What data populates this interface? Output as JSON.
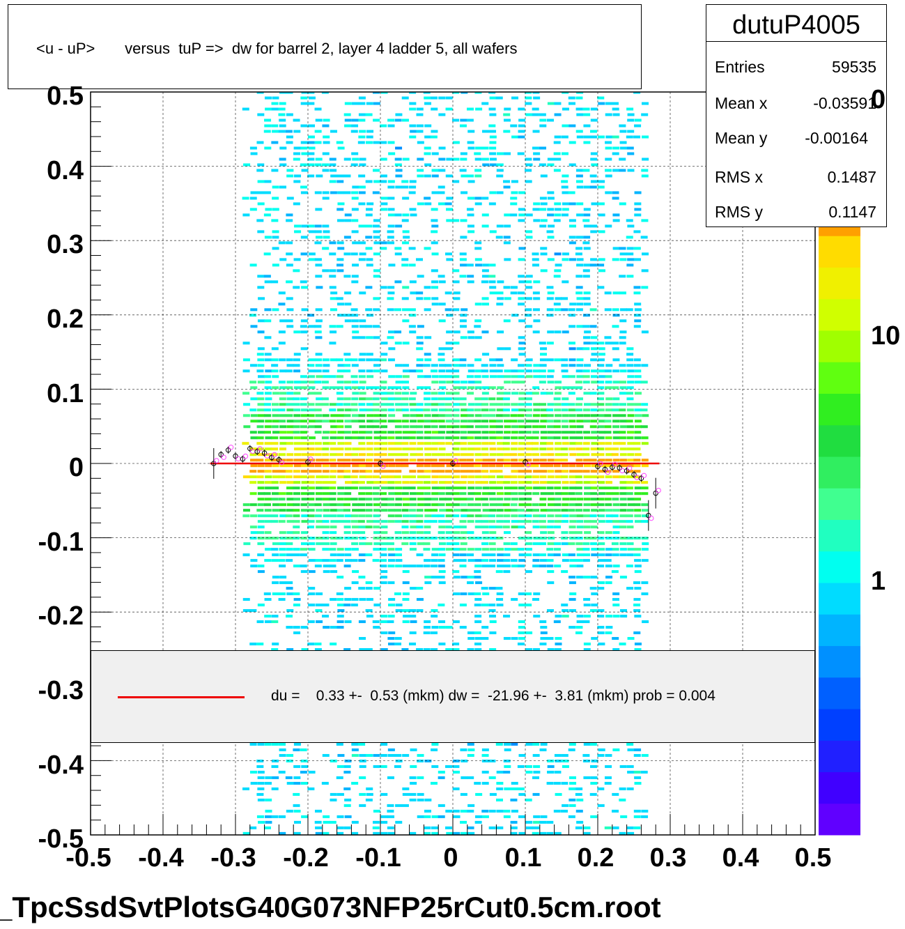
{
  "title": "<u - uP>       versus  tuP =>  dw for barrel 2, layer 4 ladder 5, all wafers",
  "stats": {
    "name": "dutuP4005",
    "rows": [
      {
        "key": "Entries",
        "value": "59535"
      },
      {
        "key": "Mean x",
        "value": "-0.03591"
      },
      {
        "key": "Mean y",
        "value": "-0.00164"
      },
      {
        "key": "RMS x",
        "value": "0.1487"
      },
      {
        "key": "RMS y",
        "value": "0.1147"
      }
    ]
  },
  "legend": {
    "text": "du =    0.33 +-  0.53 (mkm) dw =  -21.96 +-  3.81 (mkm) prob = 0.004",
    "line_color": "#ee0000"
  },
  "filename": "_TpcSsdSvtPlotsG40G073NFP25rCut0.5cm.root",
  "z_ticks": [
    "1",
    "10",
    "0"
  ],
  "palette": [
    "#6000ff",
    "#4000ff",
    "#2020ff",
    "#0040ff",
    "#0060ff",
    "#0090ff",
    "#00b4ff",
    "#00dcff",
    "#00fff0",
    "#20ffc0",
    "#40ff90",
    "#30ee60",
    "#20dd40",
    "#30ee20",
    "#60ff10",
    "#a0ff00",
    "#d0ff00",
    "#f0f000",
    "#ffdc00",
    "#ffa000"
  ],
  "chart_data": {
    "type": "heatmap",
    "title": "<u - uP>       versus  tuP =>  dw for barrel 2, layer 4 ladder 5, all wafers",
    "xlabel": "",
    "ylabel": "",
    "xlim": [
      -0.5,
      0.5
    ],
    "ylim": [
      -0.5,
      0.5
    ],
    "x_ticks": [
      "-0.5",
      "-0.4",
      "-0.3",
      "-0.2",
      "-0.1",
      "0",
      "0.1",
      "0.2",
      "0.3",
      "0.4",
      "0.5"
    ],
    "y_ticks": [
      "-0.5",
      "-0.4",
      "-0.3",
      "-0.2",
      "-0.1",
      "0",
      "0.1",
      "0.2",
      "0.3",
      "0.4",
      "0.5"
    ],
    "grid": true,
    "z_scale": "log",
    "occupied_x_range": [
      -0.3,
      0.27
    ],
    "band_center_y": 0.0,
    "fit_line": {
      "x": [
        -0.335,
        0.285
      ],
      "y": [
        0.0,
        0.0
      ],
      "color": "#ee0000"
    },
    "profile_points": {
      "x": [
        -0.33,
        -0.32,
        -0.31,
        -0.3,
        -0.29,
        -0.28,
        -0.27,
        -0.26,
        -0.25,
        -0.24,
        -0.2,
        -0.1,
        0,
        0.1,
        0.2,
        0.21,
        0.22,
        0.23,
        0.24,
        0.25,
        0.26,
        0.27,
        0.28
      ],
      "y": [
        0.0,
        0.012,
        0.018,
        0.01,
        0.006,
        0.02,
        0.016,
        0.014,
        0.008,
        0.005,
        0.002,
        0.0,
        0.0,
        0.002,
        -0.004,
        -0.008,
        -0.005,
        -0.006,
        -0.01,
        -0.015,
        -0.02,
        -0.07,
        -0.04
      ]
    }
  }
}
